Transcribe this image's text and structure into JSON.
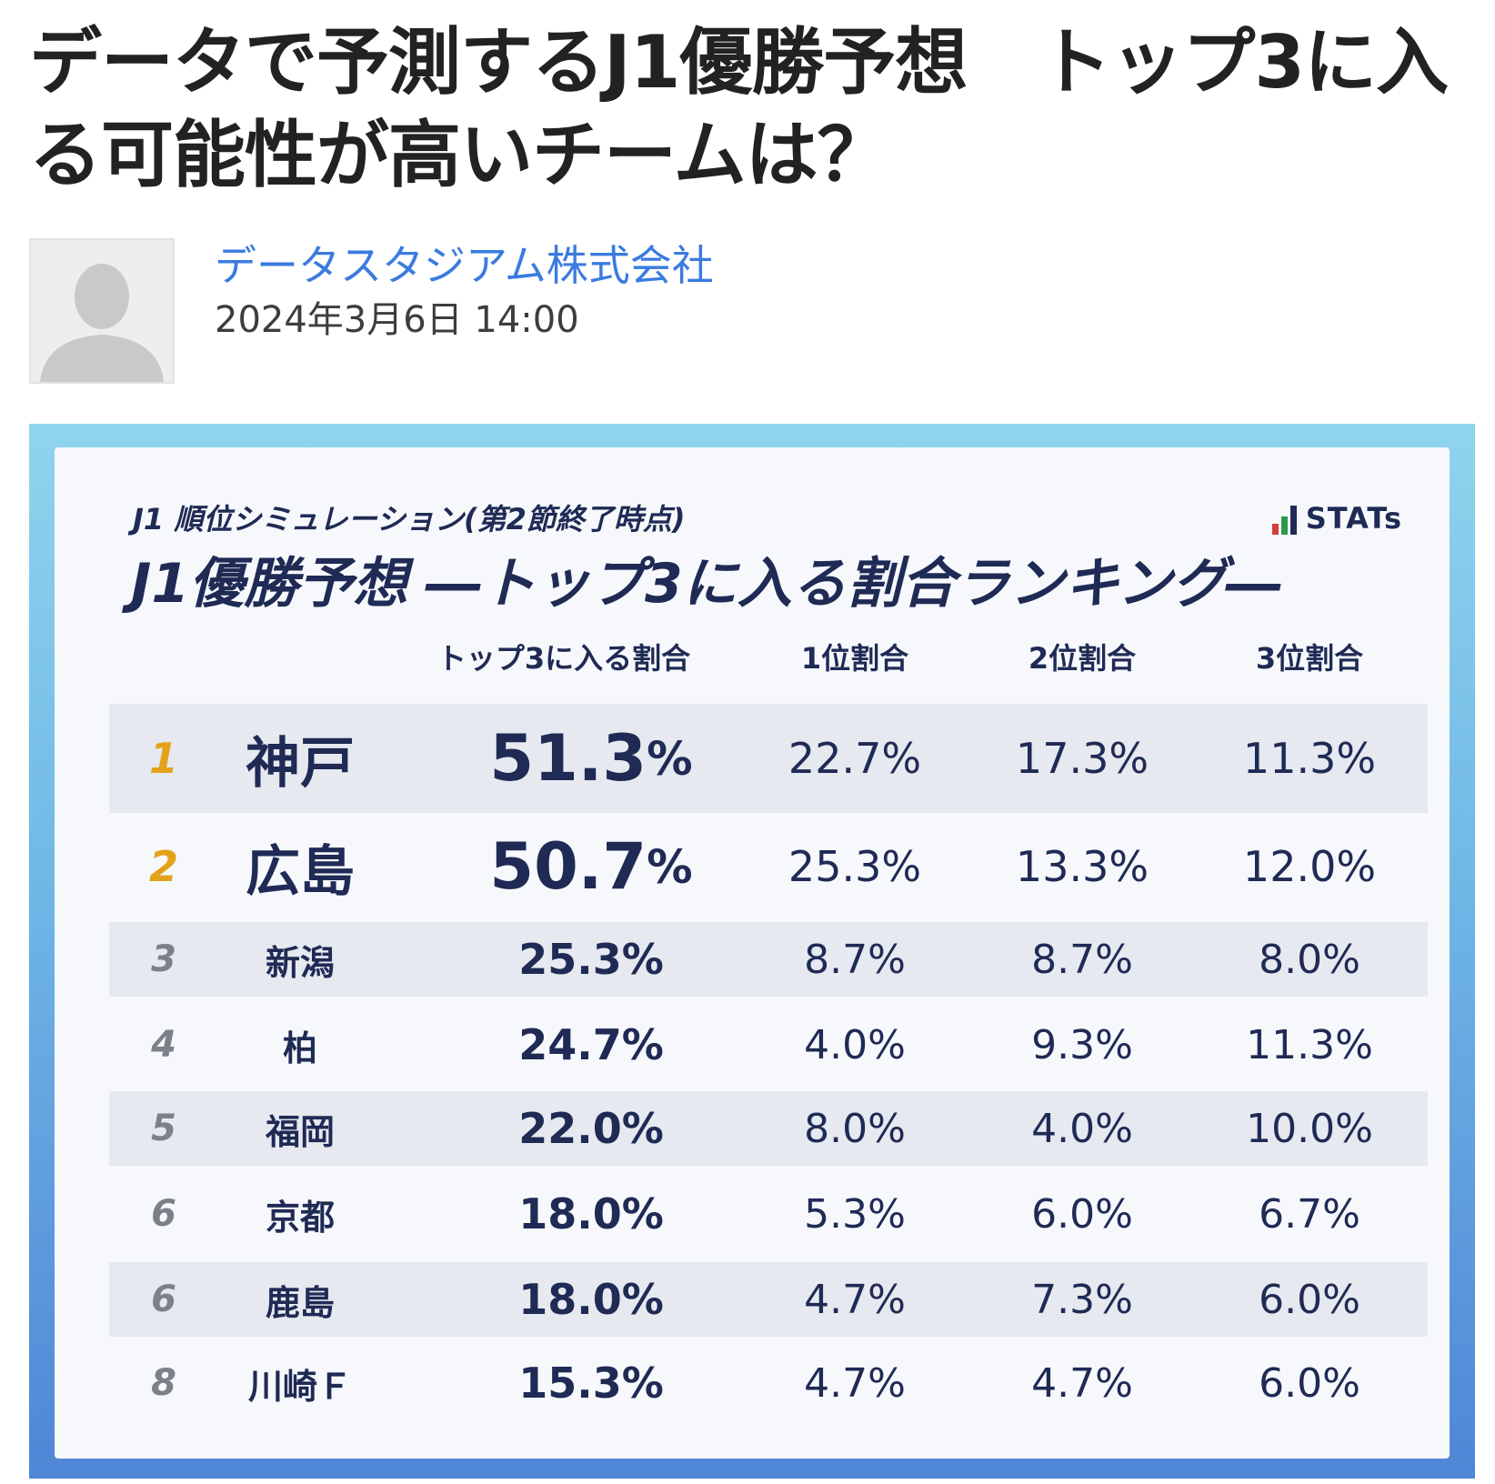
{
  "article": {
    "title": "データで予測するJ1優勝予想　トップ3に入る可能性が高いチームは？",
    "author": "データスタジアム株式会社",
    "date": "2024年3月6日 14:00"
  },
  "figure": {
    "subtitle": "J1 順位シミュレーション(第2節終了時点)",
    "title": "J1優勝予想 ―トップ3に入る割合ランキング―",
    "logo_text": "STATs",
    "logo_colors": [
      "#d93b3b",
      "#2a9b4e",
      "#1f2a55"
    ],
    "columns": {
      "top3": "トップ3に入る割合",
      "first": "1位割合",
      "second": "2位割合",
      "third": "3位割合"
    },
    "accent_gold": "#e3a21a",
    "rows": [
      {
        "rank": "1",
        "team": "神戸",
        "top3": "51.3",
        "first": "22.7%",
        "second": "17.3%",
        "third": "11.3%"
      },
      {
        "rank": "2",
        "team": "広島",
        "top3": "50.7",
        "first": "25.3%",
        "second": "13.3%",
        "third": "12.0%"
      },
      {
        "rank": "3",
        "team": "新潟",
        "top3": "25.3%",
        "first": "8.7%",
        "second": "8.7%",
        "third": "8.0%"
      },
      {
        "rank": "4",
        "team": "柏",
        "top3": "24.7%",
        "first": "4.0%",
        "second": "9.3%",
        "third": "11.3%"
      },
      {
        "rank": "5",
        "team": "福岡",
        "top3": "22.0%",
        "first": "8.0%",
        "second": "4.0%",
        "third": "10.0%"
      },
      {
        "rank": "6",
        "team": "京都",
        "top3": "18.0%",
        "first": "5.3%",
        "second": "6.0%",
        "third": "6.7%"
      },
      {
        "rank": "6",
        "team": "鹿島",
        "top3": "18.0%",
        "first": "4.7%",
        "second": "7.3%",
        "third": "6.0%"
      },
      {
        "rank": "8",
        "team": "川崎Ｆ",
        "top3": "15.3%",
        "first": "4.7%",
        "second": "4.7%",
        "third": "6.0%"
      }
    ],
    "big_pct_sign": "%"
  }
}
